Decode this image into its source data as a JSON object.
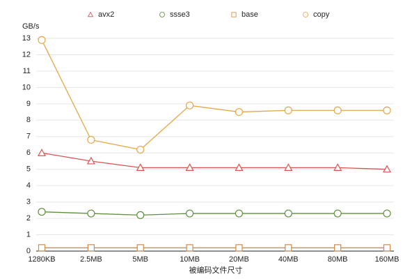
{
  "chart_data": {
    "type": "line",
    "ylabel": "GB/s",
    "xlabel": "被编码文件尺寸",
    "categories": [
      "1280KB",
      "2.5MB",
      "5MB",
      "10MB",
      "20MB",
      "40MB",
      "80MB",
      "160MB"
    ],
    "series": [
      {
        "name": "avx2",
        "color": "#d9534f",
        "marker": "triangle",
        "values": [
          6.0,
          5.5,
          5.1,
          5.1,
          5.1,
          5.1,
          5.1,
          5.0
        ]
      },
      {
        "name": "ssse3",
        "color": "#5f8f3a",
        "marker": "circle",
        "values": [
          2.4,
          2.3,
          2.2,
          2.3,
          2.3,
          2.3,
          2.3,
          2.3
        ]
      },
      {
        "name": "base",
        "color": "#d9893a",
        "marker": "square",
        "values": [
          0.2,
          0.2,
          0.2,
          0.2,
          0.2,
          0.2,
          0.2,
          0.2
        ]
      },
      {
        "name": "copy",
        "color": "#e6a645",
        "marker": "circle",
        "values": [
          12.9,
          6.8,
          6.2,
          8.9,
          8.5,
          8.6,
          8.6,
          8.6
        ]
      }
    ],
    "ylim": [
      0,
      13
    ],
    "yticks": [
      0,
      1,
      2,
      3,
      4,
      5,
      6,
      7,
      8,
      9,
      10,
      11,
      12,
      13
    ],
    "grid": true
  }
}
